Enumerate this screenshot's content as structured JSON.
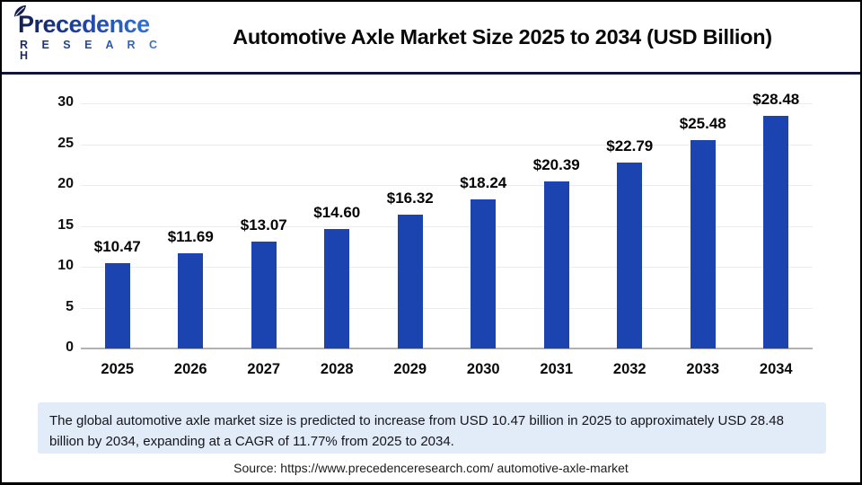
{
  "header": {
    "logo": {
      "line1": "Precedence",
      "line2": "R E S E A R C H"
    },
    "title": "Automotive Axle Market Size 2025 to 2034 (USD Billion)"
  },
  "chart_data": {
    "type": "bar",
    "title": "Automotive Axle Market Size 2025 to 2034 (USD Billion)",
    "categories": [
      "2025",
      "2026",
      "2027",
      "2028",
      "2029",
      "2030",
      "2031",
      "2032",
      "2033",
      "2034"
    ],
    "values": [
      10.47,
      11.69,
      13.07,
      14.6,
      16.32,
      18.24,
      20.39,
      22.79,
      25.48,
      28.48
    ],
    "value_labels": [
      "$10.47",
      "$11.69",
      "$13.07",
      "$14.60",
      "$16.32",
      "$18.24",
      "$20.39",
      "$22.79",
      "$25.48",
      "$28.48"
    ],
    "xlabel": "",
    "ylabel": "",
    "ylim": [
      0,
      30
    ],
    "yticks": [
      0,
      5,
      10,
      15,
      20,
      25,
      30
    ],
    "grid": "horizontal",
    "legend": "none",
    "bar_color": "#1c44b0"
  },
  "note": {
    "text": "The global automotive axle market size is predicted to increase from USD 10.47 billion in 2025 to approximately USD 28.48 billion by 2034, expanding at a CAGR of 11.77% from 2025 to 2034."
  },
  "source": {
    "text": "Source: https://www.precedenceresearch.com/ automotive-axle-market"
  }
}
